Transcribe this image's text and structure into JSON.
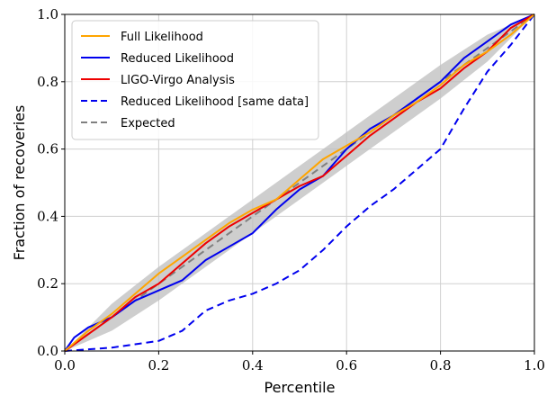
{
  "chart_data": {
    "type": "line",
    "xlabel": "Percentile",
    "ylabel": "Fraction of recoveries",
    "xlim": [
      0.0,
      1.0
    ],
    "ylim": [
      0.0,
      1.0
    ],
    "xticks": [
      "0.0",
      "0.2",
      "0.4",
      "0.6",
      "0.8",
      "1.0"
    ],
    "yticks": [
      "0.0",
      "0.2",
      "0.4",
      "0.6",
      "0.8",
      "1.0"
    ],
    "grid": true,
    "legend_position": "top-left",
    "band": {
      "x": [
        0.0,
        0.1,
        0.2,
        0.3,
        0.4,
        0.5,
        0.6,
        0.7,
        0.8,
        0.9,
        1.0
      ],
      "lower": [
        0.0,
        0.06,
        0.15,
        0.25,
        0.35,
        0.45,
        0.55,
        0.65,
        0.75,
        0.86,
        1.0
      ],
      "upper": [
        0.0,
        0.14,
        0.25,
        0.35,
        0.45,
        0.55,
        0.65,
        0.75,
        0.85,
        0.94,
        1.0
      ],
      "color": "#bdbdbd"
    },
    "series": [
      {
        "name": "Full Likelihood",
        "color": "#ffa500",
        "dash": "solid",
        "x": [
          0.0,
          0.05,
          0.1,
          0.15,
          0.2,
          0.25,
          0.3,
          0.35,
          0.4,
          0.45,
          0.5,
          0.55,
          0.6,
          0.65,
          0.7,
          0.75,
          0.8,
          0.85,
          0.9,
          0.95,
          1.0
        ],
        "y": [
          0.0,
          0.06,
          0.11,
          0.17,
          0.23,
          0.28,
          0.33,
          0.38,
          0.42,
          0.45,
          0.51,
          0.57,
          0.61,
          0.65,
          0.7,
          0.74,
          0.79,
          0.85,
          0.89,
          0.94,
          1.0
        ]
      },
      {
        "name": "Reduced Likelihood",
        "color": "#0000ee",
        "dash": "solid",
        "x": [
          0.0,
          0.02,
          0.05,
          0.1,
          0.15,
          0.2,
          0.25,
          0.3,
          0.35,
          0.4,
          0.45,
          0.5,
          0.55,
          0.6,
          0.65,
          0.7,
          0.75,
          0.8,
          0.85,
          0.9,
          0.95,
          1.0
        ],
        "y": [
          0.0,
          0.04,
          0.07,
          0.1,
          0.15,
          0.18,
          0.21,
          0.27,
          0.31,
          0.35,
          0.42,
          0.48,
          0.52,
          0.6,
          0.66,
          0.7,
          0.75,
          0.8,
          0.87,
          0.92,
          0.97,
          1.0
        ]
      },
      {
        "name": "LIGO-Virgo Analysis",
        "color": "#ee0000",
        "dash": "solid",
        "x": [
          0.0,
          0.05,
          0.1,
          0.15,
          0.2,
          0.25,
          0.3,
          0.35,
          0.4,
          0.45,
          0.5,
          0.55,
          0.6,
          0.65,
          0.7,
          0.75,
          0.8,
          0.85,
          0.9,
          0.95,
          1.0
        ],
        "y": [
          0.0,
          0.05,
          0.1,
          0.16,
          0.2,
          0.26,
          0.32,
          0.37,
          0.41,
          0.45,
          0.49,
          0.52,
          0.58,
          0.64,
          0.69,
          0.74,
          0.78,
          0.84,
          0.89,
          0.96,
          1.0
        ]
      },
      {
        "name": "Reduced Likelihood [same data]",
        "color": "#0000ee",
        "dash": "dashed",
        "x": [
          0.0,
          0.05,
          0.1,
          0.15,
          0.2,
          0.25,
          0.3,
          0.35,
          0.4,
          0.45,
          0.5,
          0.55,
          0.6,
          0.65,
          0.7,
          0.75,
          0.8,
          0.85,
          0.9,
          0.95,
          1.0
        ],
        "y": [
          0.0,
          0.005,
          0.01,
          0.02,
          0.03,
          0.06,
          0.12,
          0.15,
          0.17,
          0.2,
          0.24,
          0.3,
          0.37,
          0.43,
          0.48,
          0.54,
          0.6,
          0.72,
          0.83,
          0.91,
          1.0
        ]
      },
      {
        "name": "Expected",
        "color": "#808080",
        "dash": "dashed",
        "x": [
          0.0,
          1.0
        ],
        "y": [
          0.0,
          1.0
        ]
      }
    ]
  }
}
